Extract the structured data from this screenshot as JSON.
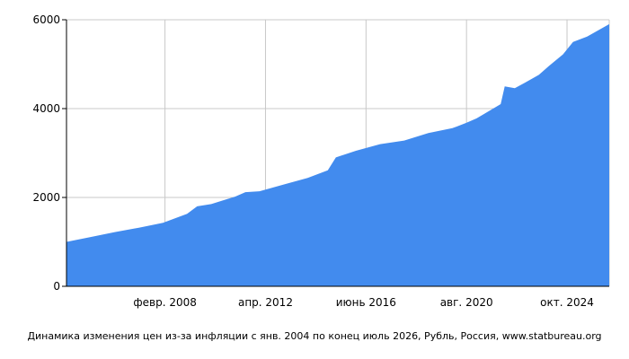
{
  "chart_data": {
    "type": "area",
    "x_start": "2004-01",
    "x_end": "2026-07",
    "ylim": [
      0,
      6000
    ],
    "y_ticks": [
      {
        "value": 0,
        "label": "0"
      },
      {
        "value": 2000,
        "label": "2000"
      },
      {
        "value": 4000,
        "label": "4000"
      },
      {
        "value": 6000,
        "label": "6000"
      }
    ],
    "x_ticks": [
      {
        "date": "2008-02",
        "label": "февр. 2008"
      },
      {
        "date": "2012-04",
        "label": "апр. 2012"
      },
      {
        "date": "2016-06",
        "label": "июнь 2016"
      },
      {
        "date": "2020-08",
        "label": "авг. 2020"
      },
      {
        "date": "2024-10",
        "label": "окт. 2024"
      }
    ],
    "grid": true,
    "fill_color": "#428bee",
    "series": [
      {
        "points": [
          [
            "2004-01",
            1000
          ],
          [
            "2005-01",
            1110
          ],
          [
            "2006-01",
            1220
          ],
          [
            "2007-01",
            1320
          ],
          [
            "2008-01",
            1430
          ],
          [
            "2009-01",
            1630
          ],
          [
            "2009-06",
            1800
          ],
          [
            "2010-01",
            1850
          ],
          [
            "2011-01",
            2020
          ],
          [
            "2011-06",
            2120
          ],
          [
            "2012-01",
            2140
          ],
          [
            "2013-01",
            2290
          ],
          [
            "2014-01",
            2440
          ],
          [
            "2014-11",
            2610
          ],
          [
            "2015-03",
            2900
          ],
          [
            "2016-01",
            3050
          ],
          [
            "2017-01",
            3200
          ],
          [
            "2018-01",
            3280
          ],
          [
            "2019-01",
            3450
          ],
          [
            "2020-01",
            3560
          ],
          [
            "2020-08",
            3680
          ],
          [
            "2021-01",
            3780
          ],
          [
            "2022-01",
            4100
          ],
          [
            "2022-03",
            4500
          ],
          [
            "2022-08",
            4460
          ],
          [
            "2023-01",
            4580
          ],
          [
            "2023-08",
            4760
          ],
          [
            "2024-01",
            4960
          ],
          [
            "2024-08",
            5220
          ],
          [
            "2025-01",
            5500
          ],
          [
            "2025-08",
            5620
          ],
          [
            "2026-07",
            5900
          ]
        ]
      }
    ]
  },
  "caption": "Динамика изменения цен из-за инфляции с янв. 2004 по конец июль 2026, Рубль, Россия, www.statbureau.org"
}
